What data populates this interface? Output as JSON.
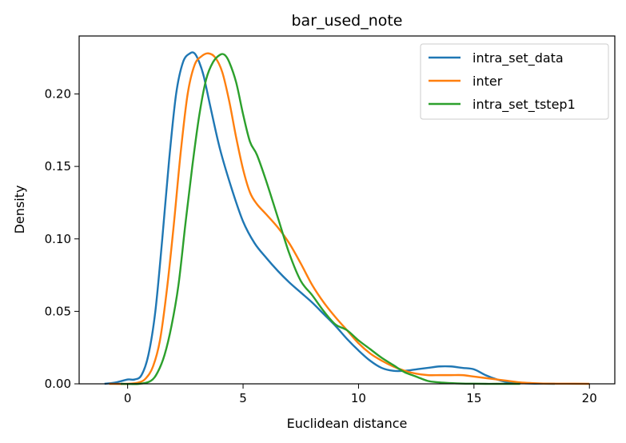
{
  "chart_data": {
    "type": "line",
    "title": "bar_used_note",
    "xlabel": "Euclidean distance",
    "ylabel": "Density",
    "xlim": [
      -2.1,
      21.1
    ],
    "ylim": [
      0,
      0.24
    ],
    "xticks": [
      0,
      5,
      10,
      15,
      20
    ],
    "xtick_labels": [
      "0",
      "5",
      "10",
      "15",
      "20"
    ],
    "yticks": [
      0,
      0.05,
      0.1,
      0.15,
      0.2
    ],
    "ytick_labels": [
      "0.00",
      "0.05",
      "0.10",
      "0.15",
      "0.20"
    ],
    "grid": false,
    "legend_position": "top-right",
    "series": [
      {
        "name": "intra_set_data",
        "color": "#1f77b4",
        "x": [
          -1.0,
          -0.5,
          0.0,
          0.3,
          0.6,
          0.9,
          1.2,
          1.5,
          1.8,
          2.1,
          2.4,
          2.7,
          2.9,
          3.1,
          3.3,
          3.6,
          4.0,
          4.5,
          5.0,
          5.5,
          6.0,
          6.5,
          7.0,
          7.5,
          8.0,
          8.5,
          9.0,
          9.5,
          10.0,
          10.5,
          11.0,
          11.5,
          12.0,
          12.5,
          13.0,
          13.5,
          14.0,
          14.5,
          15.0,
          15.5,
          16.0,
          16.5,
          17.0,
          17.5,
          18.0,
          18.5
        ],
        "y": [
          0.0,
          0.001,
          0.003,
          0.003,
          0.006,
          0.02,
          0.05,
          0.1,
          0.155,
          0.2,
          0.222,
          0.228,
          0.228,
          0.222,
          0.212,
          0.19,
          0.162,
          0.135,
          0.112,
          0.097,
          0.087,
          0.078,
          0.07,
          0.063,
          0.056,
          0.048,
          0.04,
          0.031,
          0.023,
          0.016,
          0.011,
          0.009,
          0.009,
          0.01,
          0.011,
          0.012,
          0.012,
          0.011,
          0.01,
          0.006,
          0.003,
          0.001,
          0.0005,
          0.0002,
          0.0001,
          0.0
        ]
      },
      {
        "name": "inter",
        "color": "#ff7f0e",
        "x": [
          -0.8,
          0.0,
          0.5,
          0.8,
          1.1,
          1.4,
          1.7,
          2.0,
          2.3,
          2.6,
          2.9,
          3.2,
          3.5,
          3.8,
          4.1,
          4.4,
          4.7,
          5.0,
          5.3,
          5.6,
          6.0,
          6.5,
          7.0,
          7.5,
          8.0,
          8.5,
          9.0,
          9.5,
          10.0,
          10.5,
          11.0,
          11.5,
          12.0,
          12.5,
          13.0,
          13.5,
          14.0,
          14.5,
          15.0,
          15.5,
          16.0,
          16.5,
          17.0,
          17.5,
          18.0,
          19.0,
          20.0
        ],
        "y": [
          0.0,
          0.0,
          0.001,
          0.004,
          0.012,
          0.03,
          0.065,
          0.11,
          0.16,
          0.2,
          0.22,
          0.226,
          0.228,
          0.225,
          0.215,
          0.195,
          0.17,
          0.148,
          0.132,
          0.124,
          0.117,
          0.108,
          0.097,
          0.083,
          0.068,
          0.056,
          0.046,
          0.037,
          0.028,
          0.021,
          0.016,
          0.012,
          0.009,
          0.007,
          0.006,
          0.006,
          0.006,
          0.006,
          0.005,
          0.004,
          0.003,
          0.002,
          0.001,
          0.0005,
          0.0002,
          0.0001,
          0.0
        ]
      },
      {
        "name": "intra_set_tstep1",
        "color": "#2ca02c",
        "x": [
          -0.3,
          0.5,
          1.0,
          1.3,
          1.6,
          1.9,
          2.2,
          2.5,
          2.8,
          3.1,
          3.4,
          3.7,
          4.0,
          4.2,
          4.4,
          4.7,
          5.0,
          5.3,
          5.6,
          6.0,
          6.5,
          7.0,
          7.5,
          8.0,
          8.5,
          9.0,
          9.5,
          10.0,
          10.5,
          11.0,
          11.5,
          12.0,
          12.5,
          13.0,
          13.5,
          14.0,
          14.5,
          15.0,
          15.5,
          16.0,
          17.0
        ],
        "y": [
          0.0,
          0.0,
          0.002,
          0.008,
          0.02,
          0.04,
          0.068,
          0.11,
          0.15,
          0.185,
          0.21,
          0.222,
          0.227,
          0.227,
          0.222,
          0.208,
          0.186,
          0.167,
          0.158,
          0.14,
          0.115,
          0.09,
          0.071,
          0.061,
          0.05,
          0.041,
          0.037,
          0.03,
          0.024,
          0.018,
          0.013,
          0.008,
          0.005,
          0.002,
          0.001,
          0.0005,
          0.0002,
          0.0001,
          0.0,
          0.0,
          0.0
        ]
      }
    ]
  }
}
